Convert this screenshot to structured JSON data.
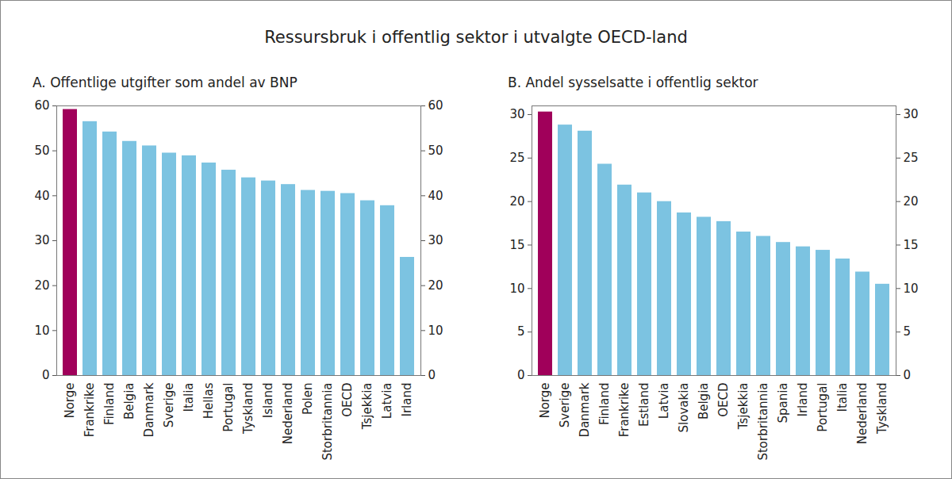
{
  "title": "Ressursbruk i offentlig sektor i utvalgte OECD-land",
  "chart_data": [
    {
      "type": "bar",
      "title": "A.  Offentlige utgifter som andel av BNP",
      "categories": [
        "Norge",
        "Frankrike",
        "Finland",
        "Belgia",
        "Danmark",
        "Sverige",
        "Italia",
        "Hellas",
        "Portugal",
        "Tyskland",
        "Island",
        "Nederland",
        "Polen",
        "Storbritannia",
        "OECD",
        "Tsjekkia",
        "Latvia",
        "Irland"
      ],
      "values": [
        59.2,
        56.5,
        54.2,
        52.1,
        51.1,
        49.5,
        48.9,
        47.3,
        45.7,
        44.0,
        43.3,
        42.5,
        41.2,
        41.0,
        40.5,
        38.9,
        37.8,
        26.3
      ],
      "colors": [
        "#a0005a",
        "#7cc3e1",
        "#7cc3e1",
        "#7cc3e1",
        "#7cc3e1",
        "#7cc3e1",
        "#7cc3e1",
        "#7cc3e1",
        "#7cc3e1",
        "#7cc3e1",
        "#7cc3e1",
        "#7cc3e1",
        "#7cc3e1",
        "#7cc3e1",
        "#7cc3e1",
        "#7cc3e1",
        "#7cc3e1",
        "#7cc3e1"
      ],
      "ylim": [
        0,
        60
      ],
      "yticks": [
        0,
        10,
        20,
        30,
        40,
        50,
        60
      ],
      "grid": false
    },
    {
      "type": "bar",
      "title": "B.  Andel sysselsatte i offentlig sektor",
      "categories": [
        "Norge",
        "Sverige",
        "Danmark",
        "Finland",
        "Frankrike",
        "Estland",
        "Latvia",
        "Slovakia",
        "Belgia",
        "OECD",
        "Tsjekkia",
        "Storbritannia",
        "Spania",
        "Irland",
        "Portugal",
        "Italia",
        "Nederland",
        "Tyskland"
      ],
      "values": [
        30.3,
        28.8,
        28.1,
        24.3,
        21.9,
        21.0,
        20.0,
        18.7,
        18.2,
        17.7,
        16.5,
        16.0,
        15.3,
        14.8,
        14.4,
        13.4,
        11.9,
        10.5
      ],
      "colors": [
        "#a0005a",
        "#7cc3e1",
        "#7cc3e1",
        "#7cc3e1",
        "#7cc3e1",
        "#7cc3e1",
        "#7cc3e1",
        "#7cc3e1",
        "#7cc3e1",
        "#7cc3e1",
        "#7cc3e1",
        "#7cc3e1",
        "#7cc3e1",
        "#7cc3e1",
        "#7cc3e1",
        "#7cc3e1",
        "#7cc3e1",
        "#7cc3e1"
      ],
      "ylim": [
        0,
        31
      ],
      "yticks": [
        0,
        5,
        10,
        15,
        20,
        25,
        30
      ],
      "grid": false
    }
  ]
}
